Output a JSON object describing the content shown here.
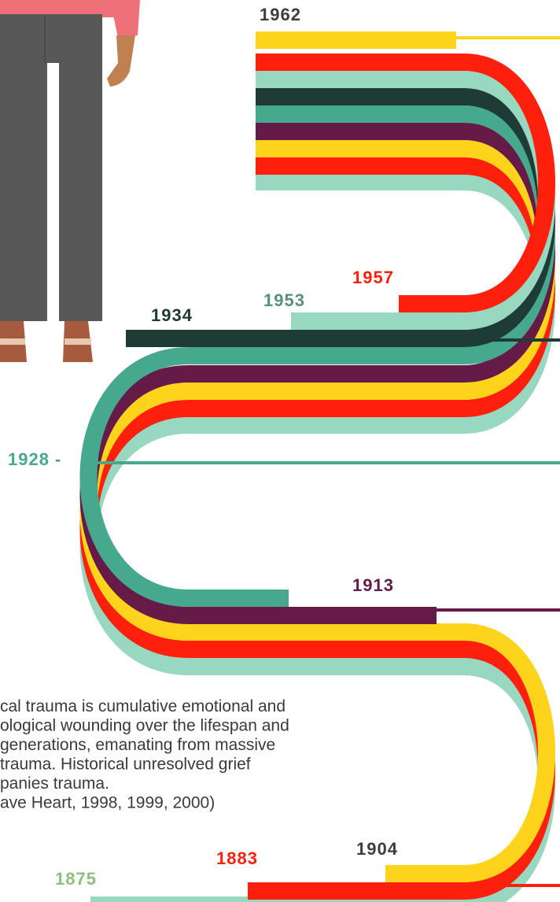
{
  "years": [
    "1962",
    "1957",
    "1953",
    "1934",
    "1928 -",
    "1913",
    "1904",
    "1883",
    "1875"
  ],
  "paragraph": [
    "cal trauma is cumulative emotional and",
    "ological wounding over the lifespan and",
    " generations, emanating from massive",
    "trauma. Historical unresolved grief",
    "panies trauma.",
    "ave Heart, 1998, 1999, 2000)"
  ]
}
